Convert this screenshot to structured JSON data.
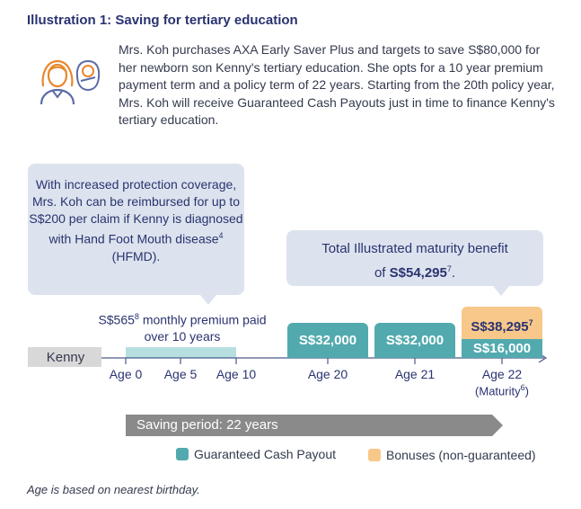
{
  "title": "Illustration 1: Saving for tertiary education",
  "intro": "Mrs. Koh purchases AXA Early Saver Plus and targets to save S$80,000 for her newborn son Kenny's tertiary education. She opts for a 10 year premium payment term and a policy term of 22 years. Starting from the 20th policy year, Mrs. Koh will receive Guaranteed Cash Payouts just in time to finance Kenny's tertiary education.",
  "icons": {
    "mother": "mother-icon",
    "baby": "baby-icon"
  },
  "bubble_protection": {
    "before": "With increased protection coverage, Mrs. Koh can be reimbursed for up to S$200 per claim if Kenny is diagnosed with Hand Foot Mouth disease",
    "sup": "4",
    "after": " (HFMD)."
  },
  "bubble_maturity": {
    "line1": "Total Illustrated maturity benefit",
    "line2_prefix": "of ",
    "amount": "S$54,295",
    "sup": "7",
    "suffix": "."
  },
  "premium": {
    "amount": "S$565",
    "sup": "8",
    "text": " monthly premium paid over 10 years"
  },
  "person_label": "Kenny",
  "ages": {
    "a0": "Age 0",
    "a5": "Age 5",
    "a10": "Age 10",
    "a20": "Age 20",
    "a21": "Age 21",
    "a22": "Age 22",
    "maturity_prefix": "(Maturity",
    "maturity_sup": "6",
    "maturity_suffix": ")"
  },
  "payouts": {
    "age20": "S$32,000",
    "age21": "S$32,000",
    "age22_guaranteed": "S$16,000",
    "age22_bonus": "S$38,295",
    "age22_bonus_sup": "7"
  },
  "saving_period": "Saving period: 22 years",
  "legend": {
    "guaranteed": "Guaranteed Cash Payout",
    "bonus": "Bonuses (non-guaranteed)"
  },
  "footnote": "Age is based on nearest birthday.",
  "colors": {
    "teal": "#52aaae",
    "orange": "#f8c88a",
    "bubble": "#dce3ee",
    "navy": "#2a3370",
    "grey_bar": "#8a8a8a",
    "kenny_bar": "#d8d8d8",
    "premium_bar": "#b7dfe0"
  }
}
